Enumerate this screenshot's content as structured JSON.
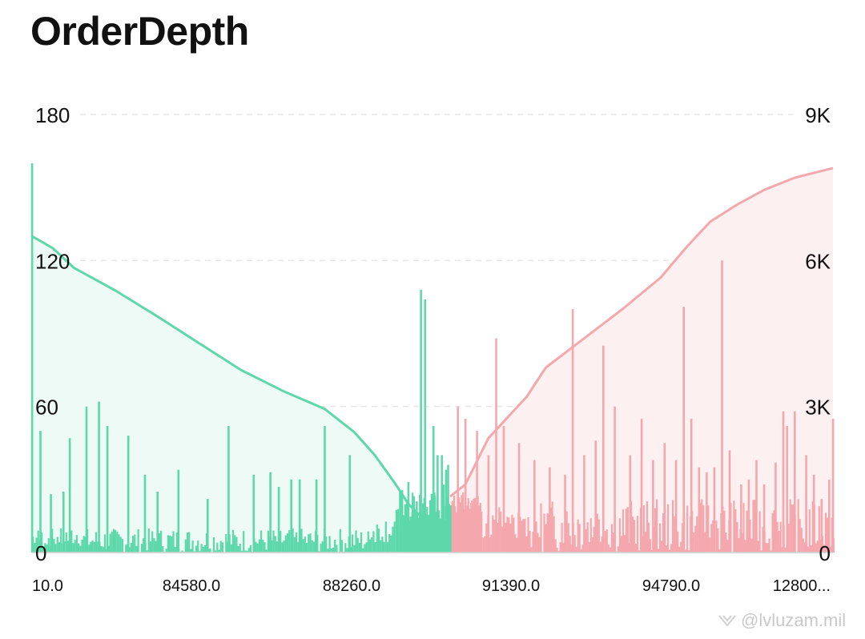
{
  "title": "OrderDepth",
  "watermark": "@lvluzam.mil",
  "colors": {
    "bid": "#5dd8aa",
    "bid_fill": "#eefaf5",
    "ask": "#f4a8ae",
    "ask_fill": "#fdf0f1",
    "grid": "#e6e6e6",
    "axis_text": "#111111"
  },
  "chart_data": {
    "type": "area",
    "title": "OrderDepth",
    "x_tick_labels": [
      "10.0",
      "84580.0",
      "88260.0",
      "91390.0",
      "94790.0",
      "12800..."
    ],
    "left_axis": {
      "tick_labels": [
        "0",
        "60",
        "120",
        "180"
      ],
      "range": [
        0,
        180
      ]
    },
    "right_axis": {
      "tick_labels": [
        "0",
        "3K",
        "6K",
        "9K"
      ],
      "range": [
        0,
        9000
      ]
    },
    "grid": true,
    "series": [
      {
        "side": "bid",
        "kind": "cumulative",
        "axis": "right",
        "points_pct_vs_value": [
          [
            0,
            6500
          ],
          [
            5,
            6250
          ],
          [
            10,
            5850
          ],
          [
            20,
            5380
          ],
          [
            30,
            4850
          ],
          [
            40,
            4300
          ],
          [
            50,
            3750
          ],
          [
            60,
            3320
          ],
          [
            70,
            2950
          ],
          [
            77,
            2480
          ],
          [
            82,
            2000
          ],
          [
            87,
            1400
          ],
          [
            90,
            1000
          ],
          [
            92.5,
            780
          ],
          [
            95,
            600
          ],
          [
            100,
            470
          ]
        ]
      },
      {
        "side": "ask",
        "kind": "cumulative",
        "axis": "right",
        "points_pct_vs_value": [
          [
            0,
            1150
          ],
          [
            4,
            1400
          ],
          [
            10,
            2350
          ],
          [
            20,
            3200
          ],
          [
            25,
            3800
          ],
          [
            35,
            4400
          ],
          [
            45,
            5000
          ],
          [
            55,
            5650
          ],
          [
            62,
            6300
          ],
          [
            68,
            6800
          ],
          [
            75,
            7150
          ],
          [
            82,
            7450
          ],
          [
            90,
            7700
          ],
          [
            100,
            7900
          ]
        ]
      },
      {
        "side": "bid",
        "kind": "size",
        "axis": "left",
        "spikes_pct_vs_value": [
          [
            0,
            160
          ],
          [
            2,
            50
          ],
          [
            4.5,
            24
          ],
          [
            7.5,
            25
          ],
          [
            9,
            47
          ],
          [
            13,
            60
          ],
          [
            16,
            62
          ],
          [
            18,
            52
          ],
          [
            23,
            48
          ],
          [
            27,
            32
          ],
          [
            30,
            25
          ],
          [
            35,
            34
          ],
          [
            42,
            22
          ],
          [
            47,
            52
          ],
          [
            53,
            32
          ],
          [
            57,
            33
          ],
          [
            59,
            27
          ],
          [
            62,
            30
          ],
          [
            64,
            30
          ],
          [
            68,
            30
          ],
          [
            70,
            52
          ],
          [
            76,
            40
          ],
          [
            88,
            25
          ],
          [
            90,
            29
          ],
          [
            92,
            21
          ],
          [
            93,
            108
          ],
          [
            94,
            104
          ],
          [
            96,
            52
          ],
          [
            97,
            40
          ],
          [
            98,
            40
          ],
          [
            99,
            34
          ],
          [
            99.5,
            36
          ]
        ]
      },
      {
        "side": "ask",
        "kind": "size",
        "axis": "left",
        "spikes_pct_vs_value": [
          [
            2,
            60
          ],
          [
            4,
            55
          ],
          [
            7,
            50
          ],
          [
            10,
            40
          ],
          [
            12,
            88
          ],
          [
            14,
            52
          ],
          [
            18,
            45
          ],
          [
            22,
            38
          ],
          [
            26,
            35
          ],
          [
            30,
            32
          ],
          [
            32,
            100
          ],
          [
            35,
            40
          ],
          [
            38,
            46
          ],
          [
            40,
            85
          ],
          [
            43,
            60
          ],
          [
            47,
            40
          ],
          [
            50,
            55
          ],
          [
            53,
            38
          ],
          [
            56,
            45
          ],
          [
            59,
            38
          ],
          [
            61,
            101
          ],
          [
            63,
            55
          ],
          [
            65,
            35
          ],
          [
            67,
            33
          ],
          [
            69,
            35
          ],
          [
            71,
            120
          ],
          [
            73,
            42
          ],
          [
            76,
            28
          ],
          [
            78,
            30
          ],
          [
            80,
            38
          ],
          [
            82,
            28
          ],
          [
            85,
            37
          ],
          [
            87,
            58
          ],
          [
            88,
            52
          ],
          [
            90,
            58
          ],
          [
            93,
            40
          ],
          [
            95,
            32
          ],
          [
            97,
            22
          ],
          [
            99,
            30
          ],
          [
            100,
            55
          ]
        ]
      }
    ]
  }
}
